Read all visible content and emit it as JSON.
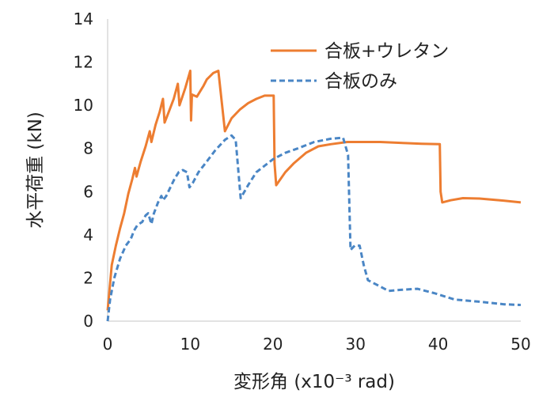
{
  "chart_data": {
    "type": "line",
    "xlabel": "変形角 (x10⁻³ rad)",
    "ylabel": "水平荷重 (kN)",
    "xlim": [
      0,
      50
    ],
    "ylim": [
      0,
      14
    ],
    "xticks": [
      "0",
      "10",
      "20",
      "30",
      "40",
      "50"
    ],
    "yticks": [
      "0",
      "2",
      "4",
      "6",
      "8",
      "10",
      "12",
      "14"
    ],
    "grid": "none",
    "legend_position": "top-right",
    "series": [
      {
        "name": "合板+ウレタン",
        "color": "#ED7D31",
        "style": "solid",
        "points": [
          [
            0,
            0.5
          ],
          [
            0.5,
            2.6
          ],
          [
            1.0,
            3.5
          ],
          [
            1.5,
            4.3
          ],
          [
            2.0,
            5.0
          ],
          [
            2.5,
            5.9
          ],
          [
            3.0,
            6.6
          ],
          [
            3.3,
            7.1
          ],
          [
            3.5,
            6.7
          ],
          [
            4.0,
            7.4
          ],
          [
            4.6,
            8.1
          ],
          [
            5.1,
            8.8
          ],
          [
            5.3,
            8.3
          ],
          [
            5.8,
            9.1
          ],
          [
            6.3,
            9.7
          ],
          [
            6.7,
            10.3
          ],
          [
            6.9,
            9.2
          ],
          [
            7.4,
            9.7
          ],
          [
            8.0,
            10.3
          ],
          [
            8.5,
            11.0
          ],
          [
            8.7,
            10.0
          ],
          [
            9.4,
            10.8
          ],
          [
            10.0,
            11.6
          ],
          [
            10.1,
            9.3
          ],
          [
            10.2,
            10.5
          ],
          [
            10.8,
            10.4
          ],
          [
            11.6,
            10.9
          ],
          [
            12.0,
            11.2
          ],
          [
            12.8,
            11.5
          ],
          [
            13.4,
            11.6
          ],
          [
            14.2,
            8.8
          ],
          [
            15.0,
            9.4
          ],
          [
            16.0,
            9.8
          ],
          [
            17.0,
            10.1
          ],
          [
            18.0,
            10.3
          ],
          [
            19.0,
            10.45
          ],
          [
            20.1,
            10.45
          ],
          [
            20.2,
            7.3
          ],
          [
            20.4,
            6.3
          ],
          [
            21.5,
            6.9
          ],
          [
            22.5,
            7.3
          ],
          [
            24.0,
            7.8
          ],
          [
            25.5,
            8.1
          ],
          [
            27.0,
            8.2
          ],
          [
            29.0,
            8.3
          ],
          [
            33.0,
            8.3
          ],
          [
            36.0,
            8.25
          ],
          [
            38.0,
            8.22
          ],
          [
            40.2,
            8.2
          ],
          [
            40.3,
            6.0
          ],
          [
            40.5,
            5.5
          ],
          [
            41.5,
            5.6
          ],
          [
            43.0,
            5.7
          ],
          [
            45.0,
            5.68
          ],
          [
            47.5,
            5.6
          ],
          [
            50.0,
            5.5
          ]
        ]
      },
      {
        "name": "合板のみ",
        "color": "#4A86C5",
        "style": "dashed",
        "points": [
          [
            0,
            0
          ],
          [
            0.3,
            1.0
          ],
          [
            0.8,
            2.0
          ],
          [
            1.5,
            2.9
          ],
          [
            2.2,
            3.5
          ],
          [
            2.8,
            3.8
          ],
          [
            3.2,
            4.2
          ],
          [
            3.6,
            4.45
          ],
          [
            4.2,
            4.6
          ],
          [
            4.6,
            4.9
          ],
          [
            4.9,
            5.0
          ],
          [
            5.3,
            4.5
          ],
          [
            5.6,
            5.0
          ],
          [
            6.1,
            5.5
          ],
          [
            6.5,
            5.8
          ],
          [
            6.7,
            5.6
          ],
          [
            7.1,
            5.8
          ],
          [
            7.6,
            6.2
          ],
          [
            8.1,
            6.6
          ],
          [
            8.6,
            6.9
          ],
          [
            9.1,
            7.0
          ],
          [
            9.6,
            6.9
          ],
          [
            9.9,
            6.2
          ],
          [
            10.3,
            6.4
          ],
          [
            11.0,
            6.9
          ],
          [
            12.0,
            7.4
          ],
          [
            13.0,
            7.9
          ],
          [
            14.2,
            8.4
          ],
          [
            15.0,
            8.6
          ],
          [
            15.5,
            8.4
          ],
          [
            16.1,
            5.7
          ],
          [
            17.0,
            6.3
          ],
          [
            18.0,
            6.9
          ],
          [
            19.0,
            7.2
          ],
          [
            20.0,
            7.5
          ],
          [
            21.5,
            7.8
          ],
          [
            23.0,
            8.0
          ],
          [
            25.0,
            8.3
          ],
          [
            27.0,
            8.45
          ],
          [
            28.5,
            8.5
          ],
          [
            29.1,
            7.7
          ],
          [
            29.4,
            3.3
          ],
          [
            29.9,
            3.5
          ],
          [
            30.5,
            3.5
          ],
          [
            31.0,
            2.6
          ],
          [
            31.5,
            1.9
          ],
          [
            32.5,
            1.7
          ],
          [
            34.0,
            1.4
          ],
          [
            35.5,
            1.45
          ],
          [
            37.5,
            1.5
          ],
          [
            39.5,
            1.3
          ],
          [
            42.0,
            1.0
          ],
          [
            45.0,
            0.9
          ],
          [
            48.0,
            0.78
          ],
          [
            50.0,
            0.75
          ]
        ]
      }
    ]
  }
}
